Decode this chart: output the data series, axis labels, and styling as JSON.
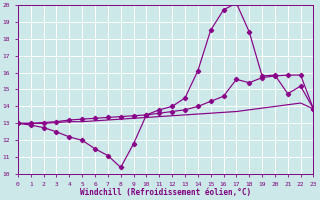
{
  "xlabel": "Windchill (Refroidissement éolien,°C)",
  "background_color": "#cce8e8",
  "grid_color": "#b8d8d8",
  "line_color": "#880088",
  "xlim": [
    0,
    23
  ],
  "ylim": [
    10,
    20
  ],
  "xtick_vals": [
    0,
    1,
    2,
    3,
    4,
    5,
    6,
    7,
    8,
    9,
    10,
    11,
    12,
    13,
    14,
    15,
    16,
    17,
    18,
    19,
    20,
    21,
    22,
    23
  ],
  "ytick_vals": [
    10,
    11,
    12,
    13,
    14,
    15,
    16,
    17,
    18,
    19,
    20
  ],
  "curve1_x": [
    0,
    1,
    2,
    3,
    4,
    5,
    6,
    7,
    8,
    9,
    10,
    11,
    12,
    13,
    14,
    15,
    16,
    17,
    18,
    19,
    20,
    21,
    22,
    23
  ],
  "curve1_y": [
    13.0,
    12.9,
    12.75,
    12.5,
    12.2,
    12.0,
    11.5,
    11.1,
    10.4,
    11.8,
    13.5,
    13.8,
    14.0,
    14.5,
    16.1,
    18.5,
    19.7,
    20.1,
    18.4,
    15.8,
    15.85,
    14.75,
    15.2,
    13.85
  ],
  "curve2_x": [
    0,
    1,
    2,
    3,
    4,
    5,
    6,
    7,
    8,
    9,
    10,
    11,
    12,
    13,
    14,
    15,
    16,
    17,
    18,
    19,
    20,
    21,
    22,
    23
  ],
  "curve2_y": [
    13.0,
    13.0,
    13.05,
    13.1,
    13.2,
    13.25,
    13.3,
    13.35,
    13.4,
    13.45,
    13.5,
    13.6,
    13.7,
    13.8,
    14.0,
    14.3,
    14.6,
    15.6,
    15.4,
    15.7,
    15.8,
    15.85,
    15.85,
    13.85
  ],
  "curve3_x": [
    0,
    1,
    2,
    3,
    4,
    5,
    6,
    7,
    8,
    9,
    10,
    11,
    12,
    13,
    14,
    15,
    16,
    17,
    18,
    19,
    20,
    21,
    22,
    23
  ],
  "curve3_y": [
    13.0,
    13.0,
    13.0,
    13.05,
    13.1,
    13.1,
    13.15,
    13.2,
    13.25,
    13.3,
    13.35,
    13.4,
    13.45,
    13.5,
    13.55,
    13.6,
    13.65,
    13.7,
    13.8,
    13.9,
    14.0,
    14.1,
    14.2,
    13.85
  ]
}
